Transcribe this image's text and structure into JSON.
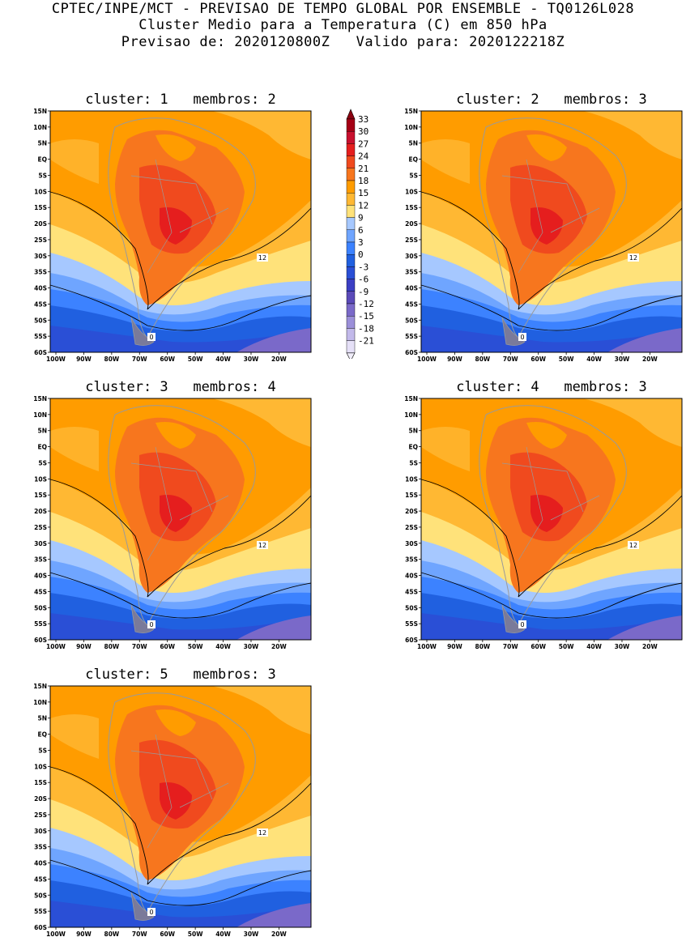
{
  "header": {
    "line1": "CPTEC/INPE/MCT - PREVISAO DE TEMPO GLOBAL POR ENSEMBLE - TQ0126L028",
    "line2": "Cluster Medio para a Temperatura (C) em 850 hPa",
    "line3": "Previsao de: 2020120800Z   Valido para: 2020122218Z"
  },
  "y_ticks": [
    "15N",
    "10N",
    "5N",
    "EQ",
    "5S",
    "10S",
    "15S",
    "20S",
    "25S",
    "30S",
    "35S",
    "40S",
    "45S",
    "50S",
    "55S",
    "60S"
  ],
  "x_ticks": [
    "100W",
    "90W",
    "80W",
    "70W",
    "60W",
    "50W",
    "40W",
    "30W",
    "20W"
  ],
  "colorbar": {
    "labels": [
      "33",
      "30",
      "27",
      "24",
      "21",
      "18",
      "15",
      "12",
      "9",
      "6",
      "3",
      "0",
      "-3",
      "-6",
      "-9",
      "-12",
      "-15",
      "-18",
      "-21"
    ],
    "colors": [
      "#a50015",
      "#c8102e",
      "#e51e1e",
      "#f04a1e",
      "#f7761e",
      "#ff9c00",
      "#ffb833",
      "#ffe27a",
      "#a6c8ff",
      "#6fa5ff",
      "#3c82ff",
      "#2060e0",
      "#2a4fd6",
      "#3b3fc4",
      "#5b4ab9",
      "#7a69c9",
      "#9b8fd9",
      "#c2b9ea",
      "#e5e0f7"
    ]
  },
  "panels": [
    {
      "title": "cluster: 1   membros: 2",
      "c12": "12",
      "c0": "0"
    },
    {
      "title": "cluster: 2   membros: 3",
      "c12": "12",
      "c0": "0"
    },
    {
      "title": "cluster: 3   membros: 4",
      "c12": "12",
      "c0": "0"
    },
    {
      "title": "cluster: 4   membros: 3",
      "c12": "12",
      "c0": "0"
    },
    {
      "title": "cluster: 5   membros: 3",
      "c12": "12",
      "c0": "0"
    }
  ]
}
